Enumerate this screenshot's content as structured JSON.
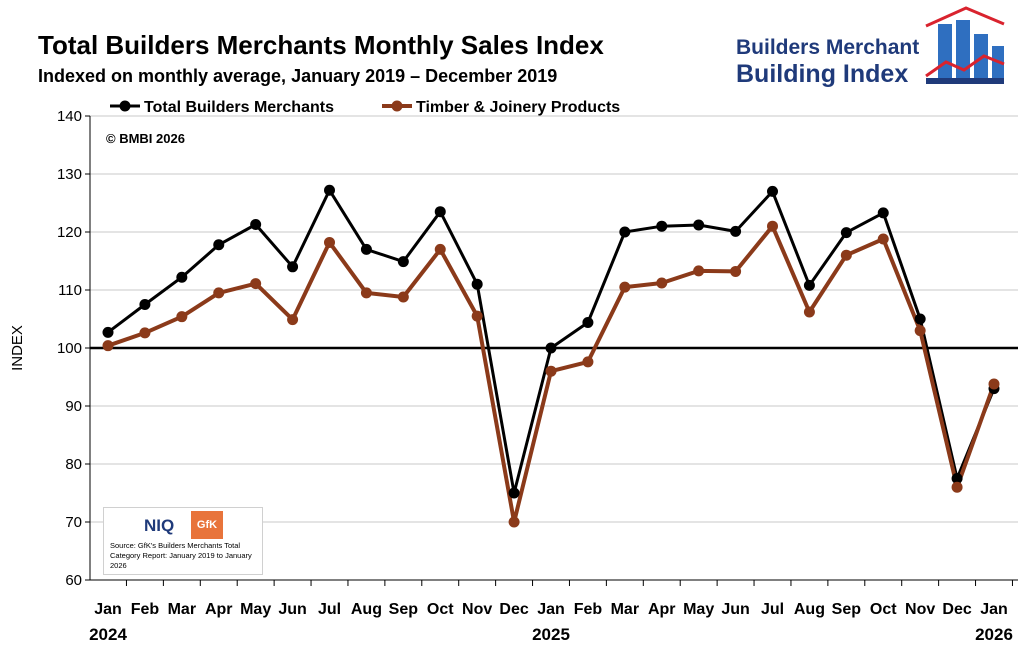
{
  "header": {
    "title": "Total Builders Merchants Monthly Sales Index",
    "subtitle": "Indexed on monthly average, January 2019 – December 2019"
  },
  "logo": {
    "line1": "Builders Merchant",
    "line2": "Building Index",
    "colors": {
      "navy": "#1f3a7a",
      "blue": "#2f6fc0",
      "red": "#d9232e"
    }
  },
  "copyright": "© BMBI 2026",
  "source": {
    "niq_label": "NIQ",
    "gfk_label": "GfK",
    "text": "Source: GfK's Builders Merchants Total Category Report: January 2019 to January 2026"
  },
  "chart_data": {
    "type": "line",
    "title": "Total Builders Merchants Monthly Sales Index",
    "xlabel": "",
    "ylabel": "INDEX",
    "ylim": [
      60,
      140
    ],
    "yticks": [
      60,
      70,
      80,
      90,
      100,
      110,
      120,
      130,
      140
    ],
    "reference_line": 100,
    "grid": true,
    "legend_position": "top",
    "categories": [
      "Jan",
      "Feb",
      "Mar",
      "Apr",
      "May",
      "Jun",
      "Jul",
      "Aug",
      "Sep",
      "Oct",
      "Nov",
      "Dec",
      "Jan",
      "Feb",
      "Mar",
      "Apr",
      "May",
      "Jun",
      "Jul",
      "Aug",
      "Sep",
      "Oct",
      "Nov",
      "Dec",
      "Jan"
    ],
    "year_labels": [
      {
        "label": "2024",
        "index": 0
      },
      {
        "label": "2025",
        "index": 12
      },
      {
        "label": "2026",
        "index": 24
      }
    ],
    "series": [
      {
        "name": "Total Builders Merchants",
        "color": "#000000",
        "values": [
          102.7,
          107.5,
          112.2,
          117.8,
          121.3,
          114.0,
          127.2,
          117.0,
          114.9,
          123.5,
          111.0,
          75.0,
          100.0,
          104.4,
          120.0,
          121.0,
          121.2,
          120.1,
          127.0,
          110.8,
          119.9,
          123.3,
          105.0,
          77.5,
          93.0
        ]
      },
      {
        "name": "Timber & Joinery Products",
        "color": "#8b3a1a",
        "values": [
          100.4,
          102.6,
          105.4,
          109.5,
          111.1,
          104.9,
          118.2,
          109.5,
          108.8,
          117.0,
          105.5,
          70.0,
          96.0,
          97.6,
          110.5,
          111.2,
          113.3,
          113.2,
          121.0,
          106.2,
          116.0,
          118.8,
          103.0,
          76.0,
          93.8
        ]
      }
    ]
  }
}
